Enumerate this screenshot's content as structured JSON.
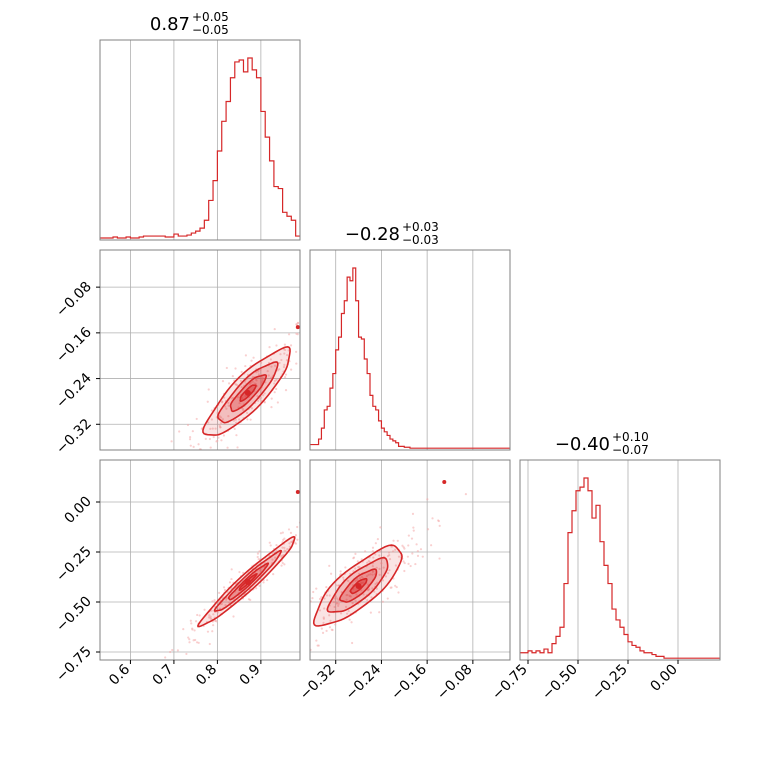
{
  "chart_data": {
    "type": "corner",
    "color": "#d62728",
    "fill_color": "#f4a9aa",
    "grid": true,
    "parameters": [
      {
        "median": "0.87",
        "plus": "+0.05",
        "minus": "−0.05",
        "range": [
          0.53,
          0.99
        ],
        "ticks": [
          0.6,
          0.7,
          0.8,
          0.9
        ],
        "tick_labels": [
          "0.6",
          "0.7",
          "0.8",
          "0.9"
        ]
      },
      {
        "median": "−0.28",
        "plus": "+0.03",
        "minus": "−0.03",
        "range": [
          -0.365,
          -0.015
        ],
        "ticks": [
          -0.32,
          -0.24,
          -0.16,
          -0.08
        ],
        "tick_labels": [
          "−0.32",
          "−0.24",
          "−0.16",
          "−0.08"
        ]
      },
      {
        "median": "−0.40",
        "plus": "+0.10",
        "minus": "−0.07",
        "range": [
          -0.79,
          0.21
        ],
        "ticks": [
          -0.75,
          -0.5,
          -0.25,
          0.0
        ],
        "tick_labels": [
          "−0.75",
          "−0.50",
          "−0.25",
          "0.00"
        ]
      }
    ],
    "histograms": [
      {
        "param": 0,
        "bin_edges": [
          0.53,
          0.54,
          0.55,
          0.56,
          0.57,
          0.58,
          0.59,
          0.6,
          0.61,
          0.62,
          0.63,
          0.64,
          0.65,
          0.66,
          0.67,
          0.68,
          0.69,
          0.7,
          0.71,
          0.72,
          0.73,
          0.74,
          0.75,
          0.76,
          0.77,
          0.78,
          0.79,
          0.8,
          0.81,
          0.82,
          0.83,
          0.84,
          0.85,
          0.86,
          0.87,
          0.88,
          0.89,
          0.9,
          0.91,
          0.92,
          0.93,
          0.94,
          0.95,
          0.96,
          0.97,
          0.98,
          0.99
        ],
        "counts": [
          0.01,
          0.01,
          0.01,
          0.015,
          0.01,
          0.01,
          0.015,
          0.01,
          0.01,
          0.015,
          0.02,
          0.02,
          0.02,
          0.02,
          0.02,
          0.015,
          0.015,
          0.03,
          0.02,
          0.02,
          0.025,
          0.035,
          0.045,
          0.06,
          0.1,
          0.2,
          0.3,
          0.45,
          0.6,
          0.7,
          0.82,
          0.9,
          0.91,
          0.85,
          0.92,
          0.86,
          0.82,
          0.65,
          0.52,
          0.4,
          0.27,
          0.26,
          0.14,
          0.12,
          0.1,
          0.02
        ]
      },
      {
        "param": 1,
        "bin_edges": [
          -0.365,
          -0.36,
          -0.355,
          -0.35,
          -0.345,
          -0.34,
          -0.335,
          -0.33,
          -0.325,
          -0.32,
          -0.315,
          -0.31,
          -0.305,
          -0.3,
          -0.295,
          -0.29,
          -0.285,
          -0.28,
          -0.275,
          -0.27,
          -0.265,
          -0.26,
          -0.255,
          -0.25,
          -0.245,
          -0.24,
          -0.235,
          -0.23,
          -0.225,
          -0.22,
          -0.215,
          -0.21,
          -0.205,
          -0.2,
          -0.195,
          -0.19,
          -0.185,
          -0.18,
          -0.175,
          -0.17,
          -0.165,
          -0.16,
          -0.155,
          -0.15,
          -0.145,
          -0.14,
          -0.135,
          -0.13,
          -0.125,
          -0.12,
          -0.115,
          -0.11,
          -0.105,
          -0.1,
          -0.095,
          -0.09,
          -0.085,
          -0.08,
          -0.075,
          -0.07,
          -0.065,
          -0.06,
          -0.055,
          -0.05,
          -0.045,
          -0.04,
          -0.035,
          -0.03,
          -0.025,
          -0.02,
          -0.015
        ],
        "counts": [
          0.03,
          0.03,
          0.03,
          0.06,
          0.12,
          0.22,
          0.24,
          0.34,
          0.42,
          0.55,
          0.62,
          0.75,
          0.82,
          0.95,
          0.93,
          1.0,
          0.82,
          0.62,
          0.61,
          0.5,
          0.42,
          0.3,
          0.24,
          0.22,
          0.16,
          0.12,
          0.1,
          0.08,
          0.06,
          0.05,
          0.04,
          0.02,
          0.02,
          0.015,
          0.015,
          0.01,
          0.01,
          0.01,
          0.01,
          0.01,
          0.01,
          0.01,
          0.01,
          0.01,
          0.01,
          0.01,
          0.01,
          0.01,
          0.01,
          0.01,
          0.01,
          0.01,
          0.01,
          0.01,
          0.01,
          0.01,
          0.01,
          0.01,
          0.01,
          0.01,
          0.01,
          0.01,
          0.01,
          0.01,
          0.01,
          0.01,
          0.01,
          0.01,
          0.01,
          0.01
        ]
      },
      {
        "param": 2,
        "bin_edges": [
          -0.79,
          -0.77,
          -0.75,
          -0.73,
          -0.71,
          -0.69,
          -0.67,
          -0.65,
          -0.63,
          -0.61,
          -0.59,
          -0.57,
          -0.55,
          -0.53,
          -0.51,
          -0.49,
          -0.47,
          -0.45,
          -0.43,
          -0.41,
          -0.39,
          -0.37,
          -0.35,
          -0.33,
          -0.31,
          -0.29,
          -0.27,
          -0.25,
          -0.23,
          -0.21,
          -0.19,
          -0.17,
          -0.15,
          -0.13,
          -0.11,
          -0.09,
          -0.07,
          -0.05,
          -0.03,
          -0.01,
          0.01,
          0.03,
          0.05,
          0.07,
          0.09,
          0.11,
          0.13,
          0.15,
          0.17,
          0.19,
          0.21
        ],
        "counts": [
          0.04,
          0.04,
          0.05,
          0.04,
          0.05,
          0.04,
          0.06,
          0.04,
          0.09,
          0.13,
          0.18,
          0.42,
          0.7,
          0.82,
          0.93,
          0.95,
          1.0,
          0.93,
          0.78,
          0.85,
          0.65,
          0.52,
          0.42,
          0.28,
          0.22,
          0.18,
          0.14,
          0.1,
          0.08,
          0.07,
          0.05,
          0.04,
          0.04,
          0.03,
          0.02,
          0.02,
          0.01,
          0.01,
          0.01,
          0.01,
          0.01,
          0.01,
          0.01,
          0.01,
          0.01,
          0.01,
          0.01,
          0.01,
          0.01,
          0.01
        ]
      }
    ],
    "correlations": [
      {
        "x_param": 0,
        "y_param": 1,
        "center": [
          0.87,
          -0.265
        ],
        "spread": [
          0.045,
          0.035
        ],
        "rho": 0.86,
        "outlier": [
          0.985,
          -0.15
        ]
      },
      {
        "x_param": 0,
        "y_param": 2,
        "center": [
          0.87,
          -0.4
        ],
        "spread": [
          0.05,
          0.1
        ],
        "rho": 0.97,
        "outlier": [
          0.985,
          0.05
        ]
      },
      {
        "x_param": 1,
        "y_param": 2,
        "center": [
          -0.28,
          -0.42
        ],
        "spread": [
          0.035,
          0.09
        ],
        "rho": 0.8,
        "outlier": [
          -0.13,
          0.1
        ]
      }
    ]
  }
}
